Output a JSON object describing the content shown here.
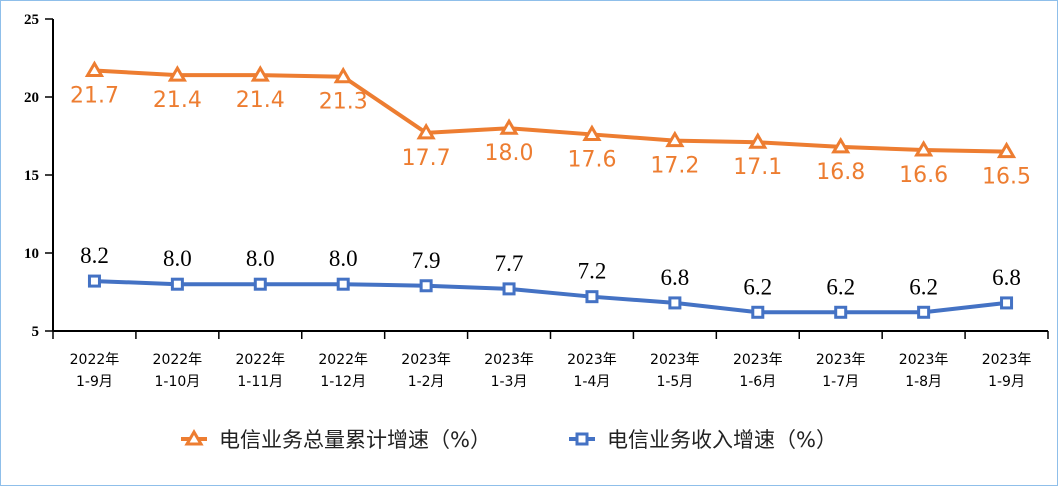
{
  "chart_data": {
    "type": "line",
    "categories": [
      [
        "2022年",
        "1-9月"
      ],
      [
        "2022年",
        "1-10月"
      ],
      [
        "2022年",
        "1-11月"
      ],
      [
        "2022年",
        "1-12月"
      ],
      [
        "2023年",
        "1-2月"
      ],
      [
        "2023年",
        "1-3月"
      ],
      [
        "2023年",
        "1-4月"
      ],
      [
        "2023年",
        "1-5月"
      ],
      [
        "2023年",
        "1-6月"
      ],
      [
        "2023年",
        "1-7月"
      ],
      [
        "2023年",
        "1-8月"
      ],
      [
        "2023年",
        "1-9月"
      ]
    ],
    "ylim": [
      5,
      25
    ],
    "yticks": [
      5,
      10,
      15,
      20,
      25
    ],
    "grid": false,
    "legend_placement": "bottom",
    "series": [
      {
        "name": "电信业务总量累计增速（%）",
        "color": "#ED7D31",
        "marker": "triangle",
        "values": [
          21.7,
          21.4,
          21.4,
          21.3,
          17.7,
          18.0,
          17.6,
          17.2,
          17.1,
          16.8,
          16.6,
          16.5
        ],
        "labels": [
          "21.7",
          "21.4",
          "21.4",
          "21.3",
          "17.7",
          "18.0",
          "17.6",
          "17.2",
          "17.1",
          "16.8",
          "16.6",
          "16.5"
        ]
      },
      {
        "name": "电信业务收入增速（%）",
        "color": "#4472C4",
        "marker": "square",
        "values": [
          8.2,
          8.0,
          8.0,
          8.0,
          7.9,
          7.7,
          7.2,
          6.8,
          6.2,
          6.2,
          6.2,
          6.8
        ],
        "labels": [
          "8.2",
          "8.0",
          "8.0",
          "8.0",
          "7.9",
          "7.7",
          "7.2",
          "6.8",
          "6.2",
          "6.2",
          "6.2",
          "6.8"
        ]
      }
    ]
  }
}
